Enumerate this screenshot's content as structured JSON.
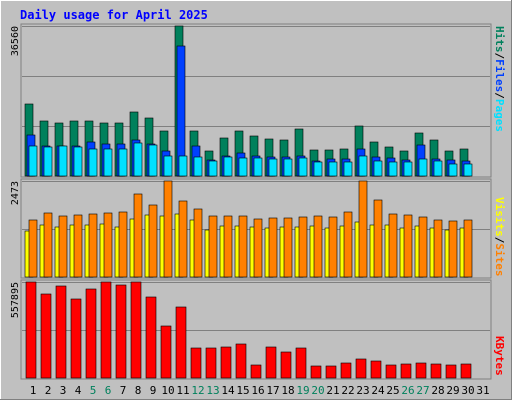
{
  "chart_data": [
    {
      "type": "bar",
      "title": "Daily usage for April 2025",
      "y_tick_label": "36560",
      "ylim": [
        0,
        36560
      ],
      "grid": true,
      "categories": [
        "1",
        "2",
        "3",
        "4",
        "5",
        "6",
        "7",
        "8",
        "9",
        "10",
        "11",
        "12",
        "13",
        "14",
        "15",
        "16",
        "17",
        "18",
        "19",
        "20",
        "21",
        "22",
        "23",
        "24",
        "25",
        "26",
        "27",
        "28",
        "29",
        "30",
        "31"
      ],
      "weekend_days": [
        "5",
        "6",
        "12",
        "13",
        "19",
        "20",
        "26",
        "27"
      ],
      "legend_labels": [
        "Pages",
        "Files",
        "Hits"
      ],
      "legend_separator": "/",
      "series": [
        {
          "name": "Hits",
          "values": [
            17600,
            13400,
            13000,
            13400,
            13400,
            12900,
            12900,
            15600,
            14200,
            11000,
            36560,
            11000,
            6000,
            9300,
            10900,
            9800,
            9000,
            8800,
            11500,
            6400,
            6400,
            6500,
            12200,
            8200,
            7000,
            6200,
            10400,
            8800,
            6200,
            6500,
            0
          ]
        },
        {
          "name": "Files",
          "values": [
            10100,
            7400,
            7200,
            7200,
            8200,
            7700,
            7700,
            8700,
            7900,
            6200,
            31700,
            7200,
            3900,
            4800,
            5600,
            4800,
            4700,
            4700,
            4800,
            3600,
            4100,
            4100,
            6500,
            4700,
            4400,
            3900,
            7600,
            4200,
            3900,
            3700,
            0
          ]
        },
        {
          "name": "Pages",
          "values": [
            7300,
            7000,
            7200,
            7100,
            6600,
            6700,
            6700,
            8100,
            7500,
            4900,
            4800,
            4600,
            3600,
            4600,
            4500,
            4400,
            4100,
            4100,
            4300,
            3300,
            3300,
            3300,
            4900,
            3700,
            3400,
            3300,
            4200,
            3700,
            3000,
            3000,
            0
          ]
        }
      ]
    },
    {
      "type": "bar",
      "y_tick_label": "2473",
      "ylim": [
        0,
        2473
      ],
      "grid": true,
      "legend_labels": [
        "Sites",
        "Visits"
      ],
      "legend_separator": "/",
      "series": [
        {
          "name": "Visits",
          "values": [
            1180,
            1340,
            1300,
            1340,
            1350,
            1360,
            1300,
            1500,
            1610,
            1580,
            1620,
            1480,
            1200,
            1310,
            1320,
            1290,
            1260,
            1300,
            1290,
            1310,
            1250,
            1320,
            1420,
            1340,
            1330,
            1270,
            1310,
            1250,
            1220,
            1260,
            0
          ]
        },
        {
          "name": "Sites",
          "values": [
            1480,
            1640,
            1570,
            1610,
            1630,
            1640,
            1670,
            2140,
            1850,
            2473,
            1960,
            1740,
            1570,
            1570,
            1570,
            1490,
            1510,
            1530,
            1550,
            1560,
            1550,
            1680,
            2470,
            1990,
            1630,
            1610,
            1540,
            1470,
            1430,
            1480,
            0
          ]
        }
      ]
    },
    {
      "type": "bar",
      "y_tick_label": "557895",
      "ylim": [
        0,
        557895
      ],
      "grid": true,
      "legend_labels": [
        "KBytes"
      ],
      "series": [
        {
          "name": "KBytes",
          "values": [
            557895,
            487000,
            534000,
            459000,
            520000,
            557895,
            543000,
            557895,
            472000,
            303000,
            413000,
            174000,
            177000,
            182000,
            196000,
            75000,
            181000,
            153000,
            177000,
            70000,
            69000,
            88000,
            108000,
            98000,
            78000,
            80000,
            90000,
            84000,
            74000,
            84000,
            0
          ]
        }
      ]
    }
  ],
  "colors": {
    "background": "#C0C0C0",
    "panel_border_light": "#FFFFFF",
    "panel_border_dark": "#808080",
    "gridline": "#808080",
    "title_color": "#0000FF",
    "tick_label": "#000000",
    "weekend_label": "#00805C",
    "hits": "#00805C",
    "files": "#0040FF",
    "pages": "#00E0FF",
    "sites": "#FF8000",
    "visits": "#FFFF00",
    "kbytes": "#FF0000"
  }
}
